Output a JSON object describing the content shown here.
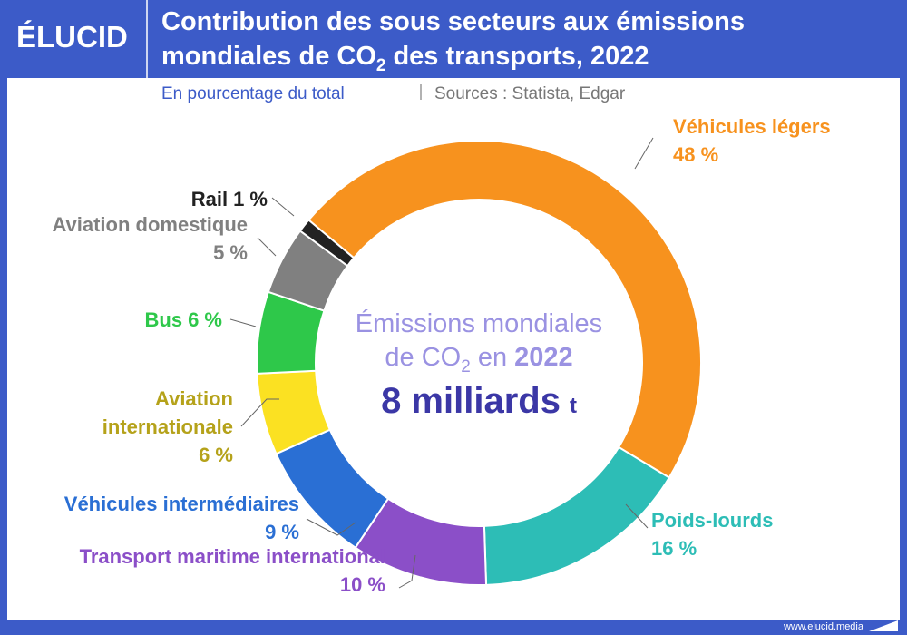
{
  "logo": "ÉLUCID",
  "footer": "www.elucid.media",
  "chart_data": {
    "type": "donut",
    "title": {
      "line1": "Contribution des sous secteurs aux émissions",
      "line2_prefix": "mondiales de CO",
      "line2_sub": "2",
      "line2_suffix": "des transports, 2022"
    },
    "subtitle": "En pourcentage du total",
    "source": "Sources : Statista, Edgar",
    "categories": [
      "Véhicules légers",
      "Poids-lourds",
      "Transport maritime international",
      "Véhicules intermédiaires",
      "Aviation internationale",
      "Bus",
      "Aviation domestique",
      "Rail"
    ],
    "values": [
      48,
      16,
      10,
      9,
      6,
      6,
      5,
      1
    ],
    "value_labels": [
      "48 %",
      "16 %",
      "10 %",
      "9 %",
      "6 %",
      "6 %",
      "5 %",
      "1 %"
    ],
    "colors": [
      "#f7921e",
      "#2dbdb6",
      "#8b4fc8",
      "#2a6fd4",
      "#fbe122",
      "#2ec84a",
      "#808080",
      "#222222"
    ],
    "label_colors": [
      "#f7921e",
      "#2dbdb6",
      "#8b4fc8",
      "#2a6fd4",
      "#b5a21a",
      "#2ec84a",
      "#808080",
      "#222222"
    ],
    "center_text": {
      "line1": "Émissions mondiales",
      "line2_prefix": "de CO",
      "line2_sub": "2",
      "line2_mid": "en",
      "line2_year": "2022",
      "total": "8 milliards",
      "unit": "t"
    }
  }
}
